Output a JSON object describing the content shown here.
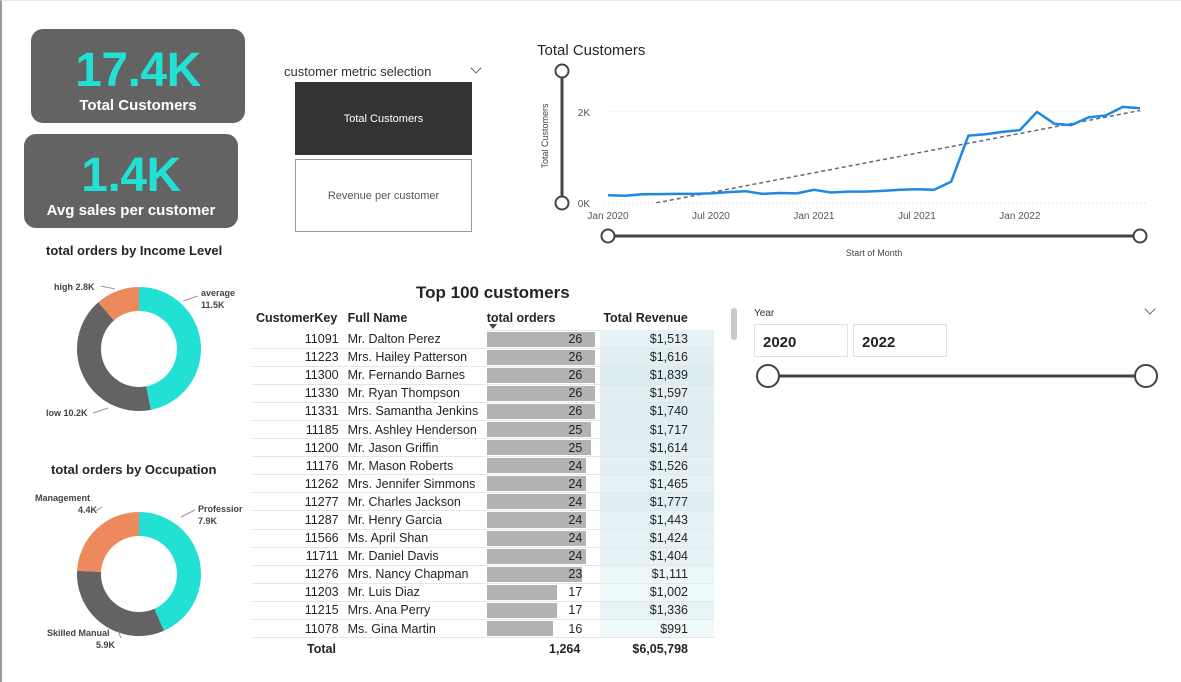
{
  "kpis": {
    "total_customers": {
      "value": "17.4K",
      "label": "Total Customers"
    },
    "avg_sales": {
      "value": "1.4K",
      "label": "Avg sales per customer"
    }
  },
  "metric_selector": {
    "title": "customer metric selection",
    "options": [
      "Total Customers",
      "Revenue per customer"
    ],
    "selected": "Total Customers"
  },
  "colors": {
    "cyan": "#22e0d4",
    "dark_gray": "#636363",
    "orange": "#ec8a5e",
    "line_blue": "#1e88e5",
    "card_gray": "#636363"
  },
  "chart_data": [
    {
      "type": "line",
      "title": "Total Customers",
      "xlabel": "Start of Month",
      "ylabel": "Total Customers",
      "x_ticks": [
        "Jan 2020",
        "Jul 2020",
        "Jan 2021",
        "Jul 2021",
        "Jan 2022"
      ],
      "y_ticks": [
        "0K",
        "2K"
      ],
      "ylim": [
        0,
        2700
      ],
      "series": [
        {
          "values": [
            170,
            160,
            190,
            195,
            200,
            200,
            210,
            240,
            260,
            200,
            220,
            210,
            290,
            230,
            250,
            250,
            265,
            290,
            300,
            290,
            470,
            1480,
            1510,
            1560,
            1600,
            2000,
            1740,
            1710,
            1880,
            1920,
            2110,
            2080
          ]
        }
      ],
      "trendline": {
        "start": -200,
        "end": 2030
      },
      "grid": "dotted-horizontal"
    },
    {
      "type": "pie",
      "title": "total orders by Income Level",
      "donut": true,
      "labels": [
        "average",
        "low",
        "high"
      ],
      "values": [
        11.5,
        10.2,
        2.8
      ],
      "display": [
        "11.5K",
        "10.2K",
        "2.8K"
      ]
    },
    {
      "type": "pie",
      "title": "total orders by Occupation",
      "donut": true,
      "labels": [
        "Professior",
        "Skilled Manual",
        "Management"
      ],
      "values": [
        7.9,
        5.9,
        4.4
      ],
      "display": [
        "7.9K",
        "5.9K",
        "4.4K"
      ]
    },
    {
      "type": "table",
      "title": "Top 100 customers",
      "columns": [
        "CustomerKey",
        "Full Name",
        "total orders",
        "Total Revenue"
      ],
      "rows": [
        [
          "11091",
          "Mr. Dalton Perez",
          26,
          "$1,513"
        ],
        [
          "11223",
          "Mrs. Hailey Patterson",
          26,
          "$1,616"
        ],
        [
          "11300",
          "Mr. Fernando Barnes",
          26,
          "$1,839"
        ],
        [
          "11330",
          "Mr. Ryan Thompson",
          26,
          "$1,597"
        ],
        [
          "11331",
          "Mrs. Samantha Jenkins",
          26,
          "$1,740"
        ],
        [
          "11185",
          "Mrs. Ashley Henderson",
          25,
          "$1,717"
        ],
        [
          "11200",
          "Mr. Jason Griffin",
          25,
          "$1,614"
        ],
        [
          "11176",
          "Mr. Mason Roberts",
          24,
          "$1,526"
        ],
        [
          "11262",
          "Mrs. Jennifer Simmons",
          24,
          "$1,465"
        ],
        [
          "11277",
          "Mr. Charles Jackson",
          24,
          "$1,777"
        ],
        [
          "11287",
          "Mr. Henry Garcia",
          24,
          "$1,443"
        ],
        [
          "11566",
          "Ms. April Shan",
          24,
          "$1,424"
        ],
        [
          "11711",
          "Mr. Daniel Davis",
          24,
          "$1,404"
        ],
        [
          "11276",
          "Mrs. Nancy Chapman",
          23,
          "$1,111"
        ],
        [
          "11203",
          "Mr. Luis Diaz",
          17,
          "$1,002"
        ],
        [
          "11215",
          "Mrs. Ana Perry",
          17,
          "$1,336"
        ],
        [
          "11078",
          "Ms. Gina Martin",
          16,
          "$991"
        ]
      ],
      "total": {
        "label": "Total",
        "orders": "1,264",
        "revenue": "$6,05,798"
      }
    }
  ],
  "year_slicer": {
    "label": "Year",
    "start": "2020",
    "end": "2022"
  }
}
